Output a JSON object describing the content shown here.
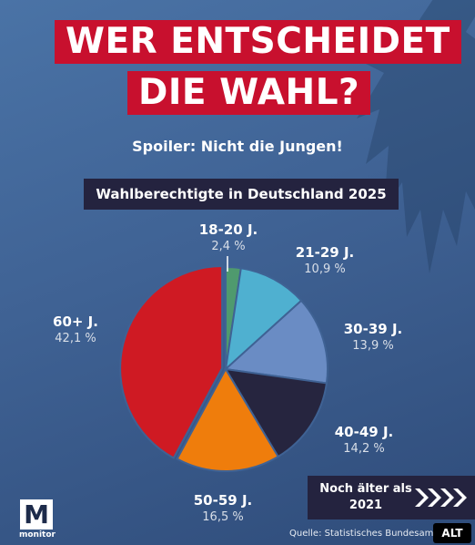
{
  "header": {
    "title_line1": "WER ENTSCHEIDET",
    "title_line2": "DIE WAHL?",
    "subtitle": "Spoiler: Nicht die Jungen!"
  },
  "chart_data": {
    "type": "pie",
    "title": "Wahlberechtigte in Deutschland 2025",
    "slices": [
      {
        "label": "18-20 J.",
        "value": 2.4,
        "value_label": "2,4 %",
        "color": "#4f9a6e"
      },
      {
        "label": "21-29 J.",
        "value": 10.9,
        "value_label": "10,9 %",
        "color": "#4fb0d0"
      },
      {
        "label": "30-39 J.",
        "value": 13.9,
        "value_label": "13,9 %",
        "color": "#6a8cc4"
      },
      {
        "label": "40-49 J.",
        "value": 14.2,
        "value_label": "14,2 %",
        "color": "#26253f"
      },
      {
        "label": "50-59 J.",
        "value": 16.5,
        "value_label": "16,5 %",
        "color": "#ef7d0c"
      },
      {
        "label": "60+ J.",
        "value": 42.1,
        "value_label": "42,1 %",
        "color": "#cf1a23"
      }
    ]
  },
  "cta": {
    "label": "Noch älter als 2021",
    "arrows": "❯❯❯❯"
  },
  "logo": {
    "letter": "M",
    "text": "monitor"
  },
  "source": "Quelle: Statistisches Bundesamt",
  "alt_badge": "ALT",
  "icons": {
    "background": "eagle-icon",
    "cta": "chevron-right-icon"
  }
}
